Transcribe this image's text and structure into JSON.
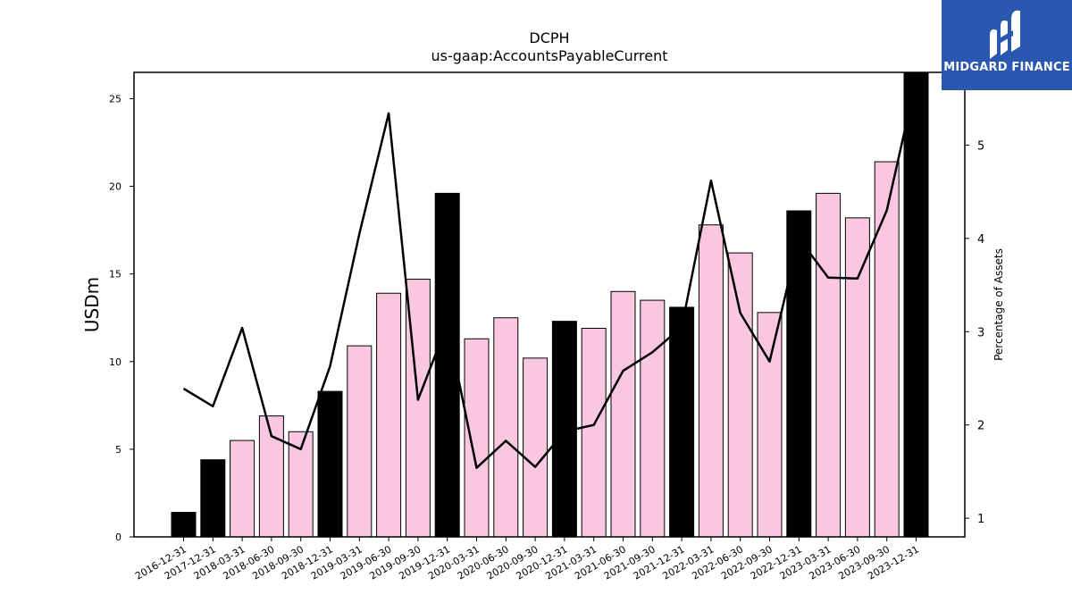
{
  "chart_data": {
    "type": "bar",
    "title": "DCPH",
    "subtitle": "us-gaap:AccountsPayableCurrent",
    "ylabel": "USDm",
    "y2label": "Percentage of Assets",
    "ylim": [
      0,
      26.5
    ],
    "y2lim": [
      0.8,
      5.78
    ],
    "yticks": [
      0,
      5,
      10,
      15,
      20,
      25
    ],
    "y2ticks": [
      1,
      2,
      3,
      4,
      5
    ],
    "categories": [
      "2016-12-31",
      "2017-12-31",
      "2018-03-31",
      "2018-06-30",
      "2018-09-30",
      "2018-12-31",
      "2019-03-31",
      "2019-06-30",
      "2019-09-30",
      "2019-12-31",
      "2020-03-31",
      "2020-06-30",
      "2020-09-30",
      "2020-12-31",
      "2021-03-31",
      "2021-06-30",
      "2021-09-30",
      "2021-12-31",
      "2022-03-31",
      "2022-06-30",
      "2022-09-30",
      "2022-12-31",
      "2023-03-31",
      "2023-06-30",
      "2023-09-30",
      "2023-12-31"
    ],
    "series": [
      {
        "kind": "bar",
        "values": [
          1.4,
          4.4,
          5.5,
          6.9,
          6.0,
          8.3,
          10.9,
          13.9,
          14.7,
          19.6,
          11.3,
          12.5,
          10.2,
          12.3,
          11.9,
          14.0,
          13.5,
          13.1,
          17.8,
          16.2,
          12.8,
          18.6,
          19.6,
          18.2,
          21.4,
          26.5
        ],
        "annual": [
          true,
          true,
          false,
          false,
          false,
          true,
          false,
          false,
          false,
          true,
          false,
          false,
          false,
          true,
          false,
          false,
          false,
          true,
          false,
          false,
          false,
          true,
          false,
          false,
          false,
          true
        ]
      },
      {
        "kind": "line",
        "axis": "right",
        "values": [
          2.39,
          2.2,
          3.04,
          1.88,
          1.74,
          2.63,
          4.05,
          5.34,
          2.27,
          3.08,
          1.54,
          1.83,
          1.55,
          1.93,
          2.0,
          2.58,
          2.78,
          3.05,
          4.62,
          3.2,
          2.68,
          4.0,
          3.58,
          3.57,
          4.3,
          5.7
        ]
      }
    ],
    "colors": {
      "annual_bar": "#000000",
      "quarter_bar": "#f9c8e0",
      "line": "#000000"
    }
  },
  "logo": {
    "text": "MIDGARD FINANCE",
    "icon": "midgard-m-logo-icon"
  }
}
